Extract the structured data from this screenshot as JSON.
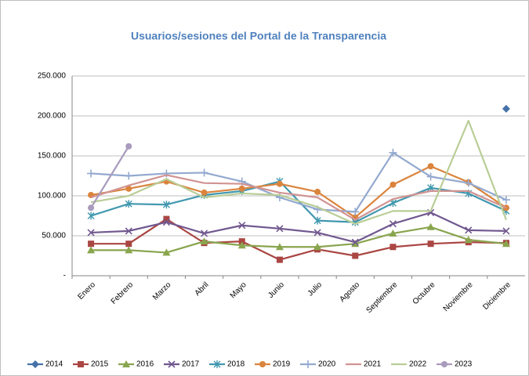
{
  "chart_data": {
    "type": "line",
    "title": "Usuarios/sesiones del Portal de la Transparencia",
    "categories": [
      "Enero",
      "Febrero",
      "Marzo",
      "Abril",
      "Mayo",
      "Junio",
      "Julio",
      "Agosto",
      "Septiembre",
      "Octubre",
      "Noviembre",
      "Diciembre"
    ],
    "ylim": [
      0,
      250000
    ],
    "yticks": [
      {
        "value": 0,
        "label": "-"
      },
      {
        "value": 50000,
        "label": "50.000"
      },
      {
        "value": 100000,
        "label": "100.000"
      },
      {
        "value": 150000,
        "label": "150.000"
      },
      {
        "value": 200000,
        "label": "200.000"
      },
      {
        "value": 250000,
        "label": "250.000"
      }
    ],
    "grid": true,
    "legend": "bottom",
    "series": [
      {
        "name": "2014",
        "color": "#4572a7",
        "marker": "diamond",
        "values": [
          null,
          null,
          null,
          null,
          null,
          null,
          null,
          null,
          null,
          null,
          null,
          209000
        ]
      },
      {
        "name": "2015",
        "color": "#aa4643",
        "marker": "square",
        "values": [
          40000,
          40000,
          71000,
          41000,
          43000,
          20000,
          33000,
          25000,
          36000,
          40000,
          42000,
          41000
        ]
      },
      {
        "name": "2016",
        "color": "#89a54e",
        "marker": "triangle",
        "values": [
          32000,
          32000,
          29000,
          43000,
          38000,
          36000,
          36000,
          40000,
          53000,
          61000,
          45000,
          40000
        ]
      },
      {
        "name": "2017",
        "color": "#71588f",
        "marker": "x",
        "values": [
          54000,
          56000,
          67000,
          53000,
          63000,
          59000,
          54000,
          42000,
          65000,
          79000,
          57000,
          56000
        ]
      },
      {
        "name": "2018",
        "color": "#4198af",
        "marker": "star",
        "values": [
          75000,
          90000,
          89000,
          101000,
          106000,
          118000,
          69000,
          67000,
          91000,
          110000,
          103000,
          81000
        ]
      },
      {
        "name": "2019",
        "color": "#db843d",
        "marker": "circle",
        "values": [
          101000,
          109000,
          118000,
          104000,
          109000,
          115000,
          105000,
          73000,
          114000,
          137000,
          117000,
          85000
        ]
      },
      {
        "name": "2020",
        "color": "#93a9cf",
        "marker": "plus",
        "values": [
          128000,
          125000,
          128000,
          129000,
          118000,
          98000,
          83000,
          80000,
          154000,
          124000,
          116000,
          95000
        ]
      },
      {
        "name": "2021",
        "color": "#d19392",
        "marker": "none",
        "values": [
          98000,
          113000,
          126000,
          116000,
          115000,
          104000,
          98000,
          70000,
          96000,
          106000,
          106000,
          85000
        ]
      },
      {
        "name": "2022",
        "color": "#b9cd96",
        "marker": "none",
        "values": [
          92000,
          100000,
          121000,
          98000,
          103000,
          101000,
          86000,
          65000,
          81000,
          81000,
          194000,
          70000
        ]
      },
      {
        "name": "2023",
        "color": "#a99bbd",
        "marker": "circle",
        "values": [
          85000,
          162000,
          null,
          null,
          null,
          null,
          null,
          null,
          null,
          null,
          null,
          null
        ]
      }
    ]
  }
}
